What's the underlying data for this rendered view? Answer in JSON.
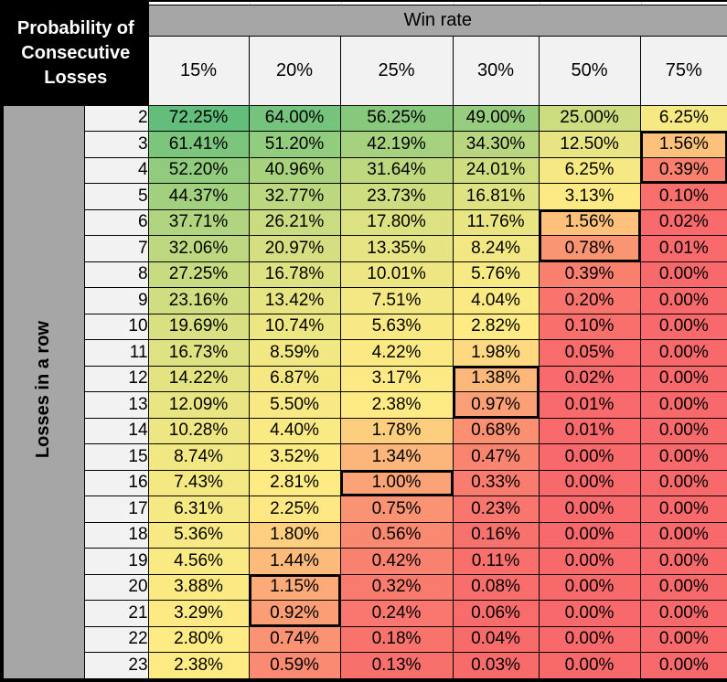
{
  "header": {
    "title_lines": [
      "Probability of",
      "Consecutive",
      "Losses"
    ],
    "win_rate_label": "Win rate"
  },
  "colors": {
    "sidebar_gray": "#a6a6a6",
    "header_bg": "#f2f2f2",
    "title_bg": "#000000",
    "title_text": "#ffffff",
    "grid_line": "#000000"
  },
  "chart_data": {
    "type": "heatmap",
    "title": "Probability of Consecutive Losses",
    "column_group_label": "Win rate",
    "row_axis_label": "Losses in a row",
    "columns": [
      "15%",
      "20%",
      "25%",
      "30%",
      "50%",
      "75%"
    ],
    "rows": [
      2,
      3,
      4,
      5,
      6,
      7,
      8,
      9,
      10,
      11,
      12,
      13,
      14,
      15,
      16,
      17,
      18,
      19,
      20,
      21,
      22,
      23
    ],
    "values": [
      [
        72.25,
        64.0,
        56.25,
        49.0,
        25.0,
        6.25
      ],
      [
        61.41,
        51.2,
        42.19,
        34.3,
        12.5,
        1.56
      ],
      [
        52.2,
        40.96,
        31.64,
        24.01,
        6.25,
        0.39
      ],
      [
        44.37,
        32.77,
        23.73,
        16.81,
        3.13,
        0.1
      ],
      [
        37.71,
        26.21,
        17.8,
        11.76,
        1.56,
        0.02
      ],
      [
        32.06,
        20.97,
        13.35,
        8.24,
        0.78,
        0.01
      ],
      [
        27.25,
        16.78,
        10.01,
        5.76,
        0.39,
        0.0
      ],
      [
        23.16,
        13.42,
        7.51,
        4.04,
        0.2,
        0.0
      ],
      [
        19.69,
        10.74,
        5.63,
        2.82,
        0.1,
        0.0
      ],
      [
        16.73,
        8.59,
        4.22,
        1.98,
        0.05,
        0.0
      ],
      [
        14.22,
        6.87,
        3.17,
        1.38,
        0.02,
        0.0
      ],
      [
        12.09,
        5.5,
        2.38,
        0.97,
        0.01,
        0.0
      ],
      [
        10.28,
        4.4,
        1.78,
        0.68,
        0.01,
        0.0
      ],
      [
        8.74,
        3.52,
        1.34,
        0.47,
        0.0,
        0.0
      ],
      [
        7.43,
        2.81,
        1.0,
        0.33,
        0.0,
        0.0
      ],
      [
        6.31,
        2.25,
        0.75,
        0.23,
        0.0,
        0.0
      ],
      [
        5.36,
        1.8,
        0.56,
        0.16,
        0.0,
        0.0
      ],
      [
        4.56,
        1.44,
        0.42,
        0.11,
        0.0,
        0.0
      ],
      [
        3.88,
        1.15,
        0.32,
        0.08,
        0.0,
        0.0
      ],
      [
        3.29,
        0.92,
        0.24,
        0.06,
        0.0,
        0.0
      ],
      [
        2.8,
        0.74,
        0.18,
        0.04,
        0.0,
        0.0
      ],
      [
        2.38,
        0.59,
        0.13,
        0.03,
        0.0,
        0.0
      ]
    ],
    "value_suffix": "%",
    "value_decimals": 2,
    "color_scale": {
      "min_value": 0,
      "mid_value": 2.3,
      "max_value": 72.25,
      "min_color": "#F8696B",
      "mid_color": "#FFEB84",
      "max_color": "#63BE7B"
    },
    "highlight_boxes": [
      {
        "column": "20%",
        "from_row": 20,
        "to_row": 21
      },
      {
        "column": "25%",
        "from_row": 16,
        "to_row": 16
      },
      {
        "column": "30%",
        "from_row": 12,
        "to_row": 13
      },
      {
        "column": "50%",
        "from_row": 6,
        "to_row": 7
      },
      {
        "column": "75%",
        "from_row": 3,
        "to_row": 4
      }
    ]
  }
}
